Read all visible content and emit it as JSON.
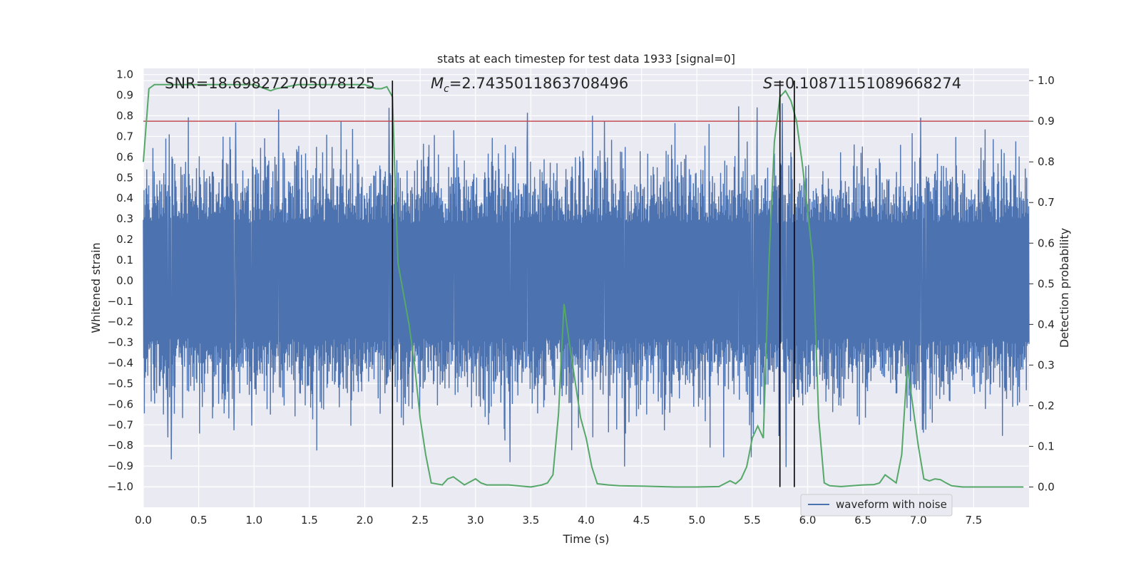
{
  "chart_data": {
    "type": "line",
    "title": "stats at each timestep for test data 1933 [signal=0]",
    "xlabel": "Time (s)",
    "ylabel": "Whitened strain",
    "y2label": "Detection probability",
    "xlim": [
      0.0,
      8.0
    ],
    "ylim": [
      -1.1,
      1.03
    ],
    "y2lim": [
      -0.05,
      1.03
    ],
    "x_ticks": [
      "0.0",
      "0.5",
      "1.0",
      "1.5",
      "2.0",
      "2.5",
      "3.0",
      "3.5",
      "4.0",
      "4.5",
      "5.0",
      "5.5",
      "6.0",
      "6.5",
      "7.0",
      "7.5"
    ],
    "x_tick_values": [
      0.0,
      0.5,
      1.0,
      1.5,
      2.0,
      2.5,
      3.0,
      3.5,
      4.0,
      4.5,
      5.0,
      5.5,
      6.0,
      6.5,
      7.0,
      7.5
    ],
    "y_ticks": [
      "1.0",
      "0.9",
      "0.8",
      "0.7",
      "0.6",
      "0.5",
      "0.4",
      "0.3",
      "0.2",
      "0.1",
      "0.0",
      "−0.1",
      "−0.2",
      "−0.3",
      "−0.4",
      "−0.5",
      "−0.6",
      "−0.7",
      "−0.8",
      "−0.9",
      "−1.0"
    ],
    "y_tick_values": [
      1.0,
      0.9,
      0.8,
      0.7,
      0.6,
      0.5,
      0.4,
      0.3,
      0.2,
      0.1,
      0.0,
      -0.1,
      -0.2,
      -0.3,
      -0.4,
      -0.5,
      -0.6,
      -0.7,
      -0.8,
      -0.9,
      -1.0
    ],
    "y2_ticks": [
      "1.0",
      "0.9",
      "0.8",
      "0.7",
      "0.6",
      "0.5",
      "0.4",
      "0.3",
      "0.2",
      "0.1",
      "0.0"
    ],
    "y2_tick_values": [
      1.0,
      0.9,
      0.8,
      0.7,
      0.6,
      0.5,
      0.4,
      0.3,
      0.2,
      0.1,
      0.0
    ],
    "annotations": {
      "snr": "SNR=18.698272705078125",
      "mc_symbol": "M",
      "mc_sub": "c",
      "mc_value": "=2.7435011863708496",
      "s_symbol": "S",
      "s_value": "=0.10871151089668274"
    },
    "threshold": {
      "value": 0.9,
      "axis": "y2",
      "color": "#c44e52"
    },
    "vertical_lines": [
      2.25,
      5.75,
      5.88
    ],
    "legend": {
      "label": "waveform with noise",
      "placement": "lower-right"
    },
    "series": [
      {
        "name": "waveform with noise",
        "axis": "y",
        "color": "#4c72b0",
        "style": "dense-oscillation",
        "x_range": [
          0.0,
          8.0
        ],
        "typical_amplitude": 0.55,
        "y_max": 0.93,
        "y_min": -0.92
      },
      {
        "name": "detection probability",
        "axis": "y2",
        "color": "#55a868",
        "x": [
          0.0,
          0.05,
          0.1,
          0.2,
          0.3,
          0.5,
          0.7,
          1.0,
          1.1,
          1.15,
          1.2,
          1.3,
          1.4,
          1.6,
          2.0,
          2.1,
          2.15,
          2.2,
          2.25,
          2.28,
          2.3,
          2.4,
          2.45,
          2.5,
          2.55,
          2.6,
          2.7,
          2.75,
          2.8,
          2.9,
          3.0,
          3.05,
          3.1,
          3.3,
          3.5,
          3.6,
          3.65,
          3.7,
          3.75,
          3.8,
          3.85,
          3.95,
          4.0,
          4.05,
          4.1,
          4.2,
          4.3,
          4.5,
          4.8,
          5.0,
          5.2,
          5.3,
          5.35,
          5.4,
          5.45,
          5.5,
          5.55,
          5.6,
          5.65,
          5.7,
          5.75,
          5.8,
          5.85,
          5.9,
          5.95,
          6.0,
          6.05,
          6.1,
          6.15,
          6.2,
          6.3,
          6.5,
          6.6,
          6.65,
          6.7,
          6.75,
          6.8,
          6.85,
          6.9,
          6.95,
          7.0,
          7.05,
          7.1,
          7.15,
          7.2,
          7.25,
          7.3,
          7.4,
          7.5,
          7.95
        ],
        "y": [
          0.8,
          0.98,
          0.99,
          0.99,
          0.99,
          0.99,
          0.99,
          0.99,
          0.98,
          0.975,
          0.98,
          0.985,
          0.99,
          0.99,
          0.99,
          0.98,
          0.98,
          0.985,
          0.96,
          0.7,
          0.55,
          0.4,
          0.3,
          0.17,
          0.08,
          0.01,
          0.005,
          0.02,
          0.025,
          0.005,
          0.02,
          0.01,
          0.005,
          0.005,
          0.0,
          0.005,
          0.01,
          0.03,
          0.18,
          0.45,
          0.35,
          0.17,
          0.12,
          0.05,
          0.008,
          0.005,
          0.003,
          0.002,
          0.0,
          0.0,
          0.001,
          0.015,
          0.008,
          0.02,
          0.05,
          0.12,
          0.15,
          0.12,
          0.55,
          0.85,
          0.96,
          0.975,
          0.95,
          0.9,
          0.8,
          0.68,
          0.55,
          0.17,
          0.01,
          0.003,
          0.001,
          0.005,
          0.006,
          0.01,
          0.03,
          0.02,
          0.01,
          0.08,
          0.3,
          0.2,
          0.1,
          0.02,
          0.015,
          0.02,
          0.018,
          0.01,
          0.003,
          0.0,
          0.0,
          0.0
        ]
      }
    ]
  }
}
